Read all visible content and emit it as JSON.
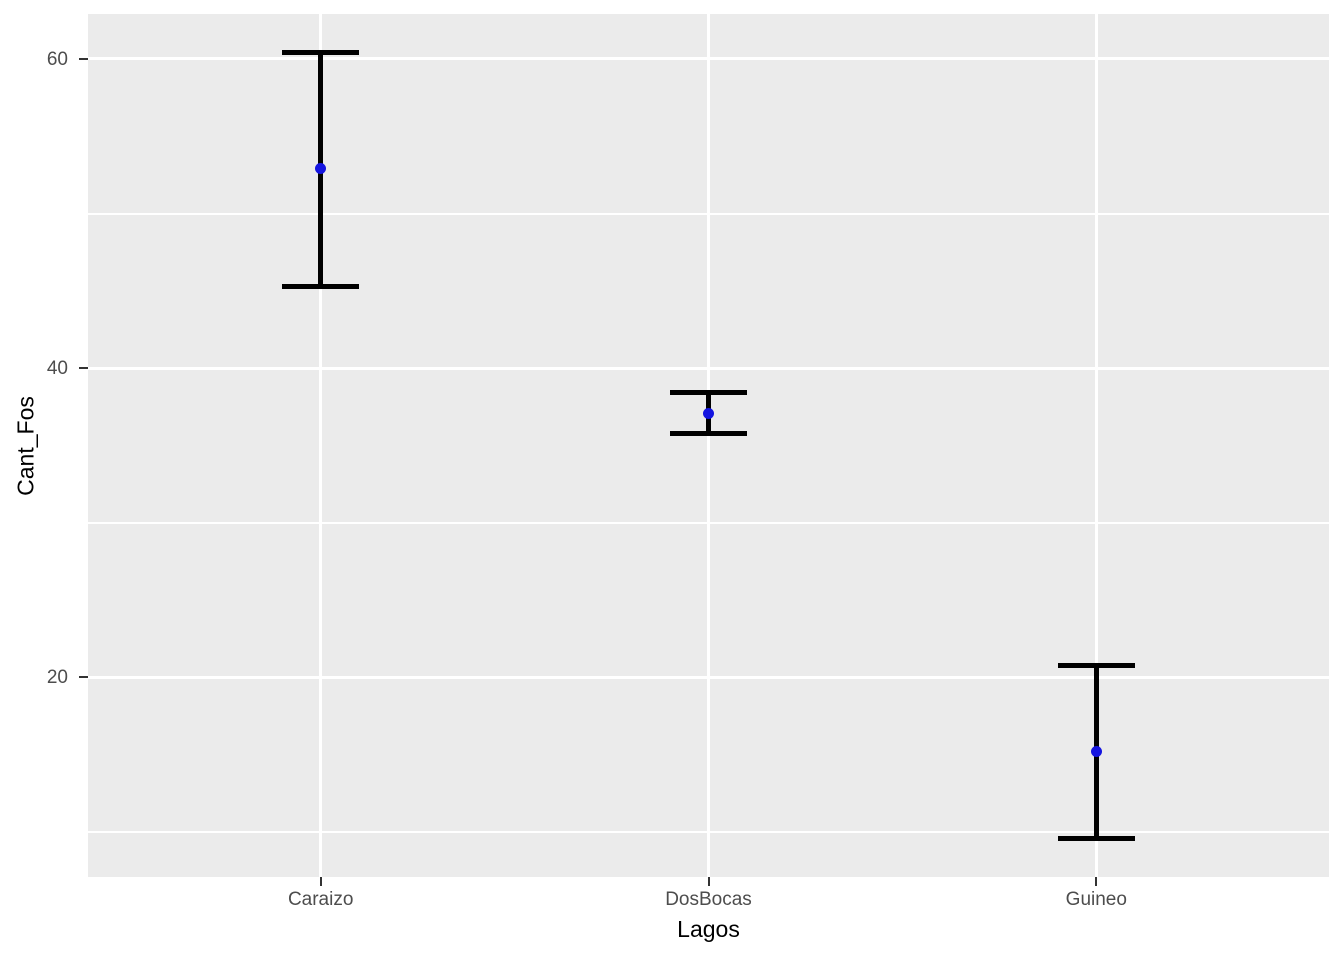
{
  "figure": {
    "background": "#FFFFFF",
    "panel_background": "#EBEBEB",
    "grid_color": "#FFFFFF",
    "errorbar_color": "#000000",
    "point_color": "#1414E0",
    "tick_label_color": "#4D4D4D",
    "axis_title_color": "#000000"
  },
  "chart_data": {
    "type": "scatter",
    "subtype": "mean-with-errorbars",
    "title": "",
    "xlabel": "Lagos",
    "ylabel": "Cant_Fos",
    "categories": [
      "Caraizo",
      "DosBocas",
      "Guineo"
    ],
    "series": [
      {
        "name": "mean",
        "values": [
          52.9,
          37.1,
          15.2
        ]
      },
      {
        "name": "ymin",
        "values": [
          45.3,
          35.8,
          9.6
        ]
      },
      {
        "name": "ymax",
        "values": [
          60.4,
          38.4,
          20.8
        ]
      }
    ],
    "y_ticks": [
      20,
      40,
      60
    ],
    "y_minor_gridlines": [
      10,
      30,
      50
    ],
    "ylim": [
      7.1,
      62.9
    ],
    "grid": true,
    "legend": false
  }
}
